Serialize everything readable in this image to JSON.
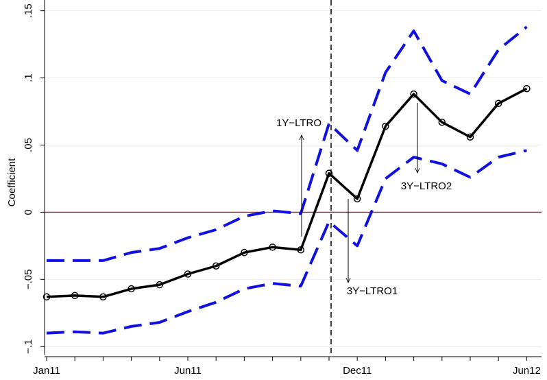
{
  "chart_data": {
    "type": "line",
    "y_label": "Coefficient",
    "categories": [
      "Jan11",
      null,
      null,
      null,
      null,
      "Jun11",
      null,
      null,
      null,
      null,
      null,
      "Dec11",
      null,
      null,
      null,
      null,
      null,
      "Jun12"
    ],
    "series": [
      {
        "color": "#000000",
        "dash": false,
        "markers": true,
        "values": [
          -0.063,
          -0.062,
          -0.063,
          -0.057,
          -0.054,
          -0.046,
          -0.04,
          -0.03,
          -0.026,
          -0.028,
          0.029,
          0.01,
          0.064,
          0.088,
          0.067,
          0.056,
          0.081,
          0.092
        ]
      },
      {
        "color": "#1010e0",
        "dash": true,
        "markers": false,
        "values": [
          -0.036,
          -0.036,
          -0.036,
          -0.03,
          -0.027,
          -0.019,
          -0.013,
          -0.003,
          0.001,
          -0.001,
          0.066,
          0.046,
          0.104,
          0.135,
          0.098,
          0.088,
          0.121,
          0.138
        ]
      },
      {
        "color": "#1010e0",
        "dash": true,
        "markers": false,
        "values": [
          -0.09,
          -0.089,
          -0.09,
          -0.085,
          -0.082,
          -0.074,
          -0.067,
          -0.057,
          -0.053,
          -0.055,
          -0.007,
          -0.025,
          0.025,
          0.041,
          0.036,
          0.026,
          0.041,
          0.046
        ]
      }
    ],
    "ylim": [
      -0.106,
      0.158
    ],
    "yticks": [
      {
        "value": -0.1,
        "label": "−.1"
      },
      {
        "value": -0.05,
        "label": "−.05"
      },
      0,
      {
        "value": 0.05,
        "label": ".05"
      },
      {
        "value": 0.1,
        "label": ".1"
      },
      {
        "value": 0.15,
        "label": ".15"
      }
    ],
    "grid": true,
    "hline": 0,
    "hline_color": "#a0203a",
    "vline_index": 10,
    "annotations": [
      "1Y−LTRO",
      "3Y−LTRO1",
      "3Y−LTRO2"
    ]
  }
}
